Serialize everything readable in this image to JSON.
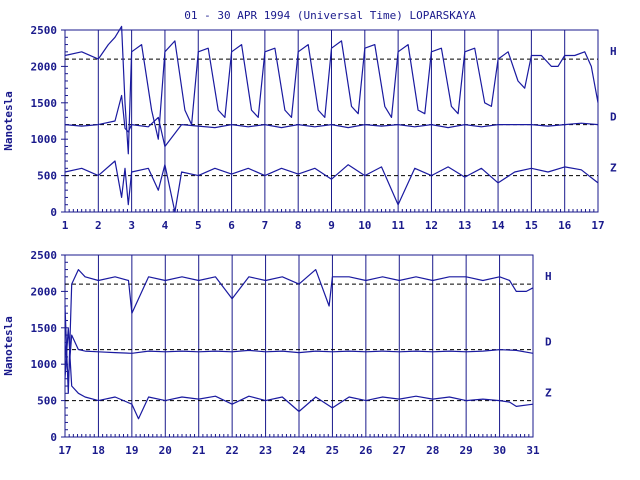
{
  "title": "01 - 30 APR 1994 (Universal Time) LOPARSKAYA",
  "colors": {
    "trace": "#1a1aa0",
    "axis": "#1a1a8c",
    "background": "#ffffff"
  },
  "chart_data": [
    {
      "type": "line",
      "title": "01 - 30 APR 1994 (Universal Time) LOPARSKAYA",
      "xlabel": "",
      "ylabel": "Nanotesla",
      "xlim": [
        1,
        17
      ],
      "ylim": [
        0,
        2500
      ],
      "x_ticks": [
        "1",
        "2",
        "3",
        "4",
        "5",
        "6",
        "7",
        "8",
        "9",
        "10",
        "11",
        "12",
        "13",
        "14",
        "15",
        "16",
        "17"
      ],
      "y_ticks": [
        "0",
        "500",
        "1000",
        "1500",
        "2000",
        "2500"
      ],
      "grid": "vertical lines at each day",
      "baselines": [
        {
          "label": "H",
          "value": 2100
        },
        {
          "label": "D",
          "value": 1200
        },
        {
          "label": "Z",
          "value": 500
        }
      ],
      "series": [
        {
          "name": "H",
          "x": [
            1,
            1.5,
            2,
            2.3,
            2.5,
            2.7,
            2.8,
            2.9,
            3.0,
            3.3,
            3.6,
            3.8,
            4.0,
            4.3,
            4.6,
            4.8,
            5.0,
            5.3,
            5.6,
            5.8,
            6.0,
            6.3,
            6.6,
            6.8,
            7.0,
            7.3,
            7.6,
            7.8,
            8.0,
            8.3,
            8.6,
            8.8,
            9.0,
            9.3,
            9.6,
            9.8,
            10.0,
            10.3,
            10.6,
            10.8,
            11.0,
            11.3,
            11.6,
            11.8,
            12.0,
            12.3,
            12.6,
            12.8,
            13.0,
            13.3,
            13.6,
            13.8,
            14.0,
            14.3,
            14.6,
            14.8,
            15.0,
            15.3,
            15.6,
            15.8,
            16.0,
            16.3,
            16.6,
            16.8,
            17.0
          ],
          "values": [
            2150,
            2200,
            2100,
            2300,
            2400,
            2550,
            1500,
            800,
            2200,
            2300,
            1400,
            1000,
            2200,
            2350,
            1400,
            1200,
            2200,
            2250,
            1400,
            1300,
            2200,
            2300,
            1400,
            1300,
            2200,
            2250,
            1400,
            1300,
            2200,
            2300,
            1400,
            1300,
            2250,
            2350,
            1450,
            1350,
            2250,
            2300,
            1450,
            1300,
            2200,
            2300,
            1400,
            1350,
            2200,
            2250,
            1450,
            1350,
            2200,
            2250,
            1500,
            1450,
            2100,
            2200,
            1800,
            1700,
            2150,
            2150,
            2000,
            2000,
            2150,
            2150,
            2200,
            2000,
            1500
          ]
        },
        {
          "name": "D",
          "x": [
            1,
            1.5,
            2,
            2.5,
            2.7,
            2.8,
            2.9,
            3.0,
            3.5,
            3.8,
            4.0,
            4.5,
            5,
            5.5,
            6,
            6.5,
            7,
            7.5,
            8,
            8.5,
            9,
            9.5,
            10,
            10.5,
            11,
            11.5,
            12,
            12.5,
            13,
            13.5,
            14,
            14.5,
            15,
            15.5,
            16,
            16.5,
            17
          ],
          "values": [
            1200,
            1180,
            1200,
            1250,
            1600,
            1150,
            1100,
            1200,
            1170,
            1300,
            900,
            1200,
            1180,
            1160,
            1200,
            1170,
            1200,
            1160,
            1200,
            1170,
            1200,
            1160,
            1200,
            1180,
            1200,
            1170,
            1200,
            1160,
            1200,
            1170,
            1200,
            1200,
            1200,
            1180,
            1200,
            1220,
            1200
          ]
        },
        {
          "name": "Z",
          "x": [
            1,
            1.5,
            2,
            2.5,
            2.7,
            2.8,
            2.9,
            3.0,
            3.5,
            3.8,
            4.0,
            4.3,
            4.5,
            5,
            5.5,
            6,
            6.5,
            7,
            7.5,
            8,
            8.5,
            9,
            9.5,
            10,
            10.5,
            11,
            11.5,
            12,
            12.5,
            13,
            13.5,
            14,
            14.5,
            15,
            15.5,
            16,
            16.5,
            17
          ],
          "values": [
            550,
            600,
            500,
            700,
            200,
            600,
            100,
            550,
            600,
            300,
            650,
            0,
            550,
            500,
            600,
            520,
            600,
            500,
            600,
            520,
            600,
            450,
            650,
            500,
            620,
            100,
            600,
            500,
            620,
            480,
            600,
            400,
            550,
            600,
            550,
            620,
            580,
            400
          ]
        }
      ]
    },
    {
      "type": "line",
      "title": "",
      "xlabel": "",
      "ylabel": "Nanotesla",
      "xlim": [
        17,
        31
      ],
      "ylim": [
        0,
        2500
      ],
      "x_ticks": [
        "17",
        "18",
        "19",
        "20",
        "21",
        "22",
        "23",
        "24",
        "25",
        "26",
        "27",
        "28",
        "29",
        "30",
        "31"
      ],
      "y_ticks": [
        "0",
        "500",
        "1000",
        "1500",
        "2000",
        "2500"
      ],
      "grid": "vertical lines at each day",
      "baselines": [
        {
          "label": "H",
          "value": 2100
        },
        {
          "label": "D",
          "value": 1200
        },
        {
          "label": "Z",
          "value": 500
        }
      ],
      "series": [
        {
          "name": "H",
          "x": [
            17,
            17.1,
            17.2,
            17.4,
            17.6,
            18.0,
            18.5,
            18.9,
            19.0,
            19.5,
            20.0,
            20.5,
            21.0,
            21.5,
            22.0,
            22.5,
            23.0,
            23.5,
            24.0,
            24.5,
            24.9,
            25.0,
            25.5,
            26.0,
            26.5,
            27.0,
            27.5,
            28.0,
            28.5,
            29.0,
            29.5,
            30.0,
            30.3,
            30.5,
            30.8,
            31.0
          ],
          "values": [
            1800,
            600,
            2100,
            2300,
            2200,
            2150,
            2200,
            2150,
            1700,
            2200,
            2150,
            2200,
            2150,
            2200,
            1900,
            2200,
            2150,
            2200,
            2100,
            2300,
            1800,
            2200,
            2200,
            2150,
            2200,
            2150,
            2200,
            2150,
            2200,
            2200,
            2150,
            2200,
            2150,
            2000,
            2000,
            2050
          ]
        },
        {
          "name": "D",
          "x": [
            17,
            17.1,
            17.2,
            17.4,
            17.6,
            18.0,
            18.5,
            19.0,
            19.5,
            20.0,
            20.5,
            21.0,
            21.5,
            22.0,
            22.5,
            23.0,
            23.5,
            24.0,
            24.5,
            25.0,
            25.5,
            26.0,
            26.5,
            27.0,
            27.5,
            28.0,
            28.5,
            29.0,
            29.5,
            30.0,
            30.5,
            31.0
          ],
          "values": [
            1300,
            800,
            1400,
            1200,
            1180,
            1170,
            1160,
            1150,
            1180,
            1170,
            1180,
            1170,
            1180,
            1170,
            1190,
            1170,
            1180,
            1160,
            1180,
            1170,
            1180,
            1170,
            1180,
            1170,
            1180,
            1170,
            1180,
            1170,
            1180,
            1200,
            1190,
            1150
          ]
        },
        {
          "name": "Z",
          "x": [
            17,
            17.1,
            17.2,
            17.4,
            17.6,
            18.0,
            18.5,
            19.0,
            19.2,
            19.5,
            20.0,
            20.5,
            21.0,
            21.5,
            22.0,
            22.5,
            23.0,
            23.5,
            24.0,
            24.5,
            25.0,
            25.5,
            26.0,
            26.5,
            27.0,
            27.5,
            28.0,
            28.5,
            29.0,
            29.5,
            30.0,
            30.3,
            30.5,
            31.0
          ],
          "values": [
            800,
            1500,
            700,
            600,
            550,
            500,
            550,
            450,
            250,
            550,
            500,
            550,
            520,
            560,
            450,
            560,
            500,
            550,
            350,
            550,
            400,
            550,
            500,
            550,
            520,
            560,
            520,
            550,
            500,
            520,
            500,
            480,
            420,
            450
          ]
        }
      ]
    }
  ]
}
